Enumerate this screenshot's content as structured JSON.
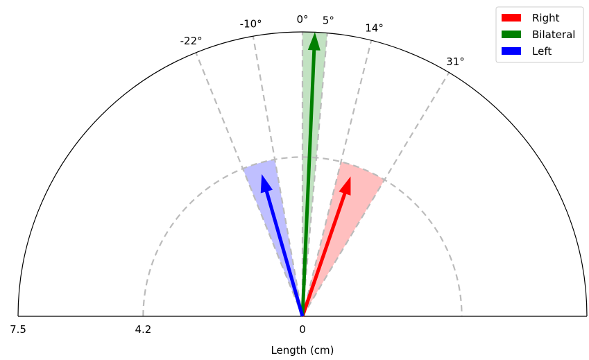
{
  "chart_data": {
    "type": "polar-arrows",
    "xlabel": "Length (cm)",
    "r_max": 7.5,
    "radial_ticks": [
      {
        "label": "7.5",
        "value": 7.5,
        "side": "left"
      },
      {
        "label": "4.2",
        "value": 4.2,
        "side": "left"
      },
      {
        "label": "0",
        "value": 0,
        "side": "center"
      }
    ],
    "inner_circle_r": 4.2,
    "angle_ticks": [
      {
        "label": "-22°",
        "deg": -22
      },
      {
        "label": "-10°",
        "deg": -10
      },
      {
        "label": "0°",
        "deg": 0
      },
      {
        "label": "5°",
        "deg": 5
      },
      {
        "label": "14°",
        "deg": 14
      },
      {
        "label": "31°",
        "deg": 31
      }
    ],
    "series": [
      {
        "name": "Right",
        "color": "#ff0000",
        "fill": "#ffbcbc",
        "angle": 19,
        "length": 3.9,
        "wedge_from": 14,
        "wedge_to": 31,
        "wedge_r": 4.2
      },
      {
        "name": "Bilateral",
        "color": "#008000",
        "fill": "#bfe0bf",
        "angle": 2.5,
        "length": 7.5,
        "wedge_from": 0,
        "wedge_to": 5,
        "wedge_r": 7.5
      },
      {
        "name": "Left",
        "color": "#0000ff",
        "fill": "#bcbcff",
        "angle": -16,
        "length": 3.9,
        "wedge_from": -22,
        "wedge_to": -10,
        "wedge_r": 4.2
      }
    ],
    "legend_position": "top-right"
  }
}
